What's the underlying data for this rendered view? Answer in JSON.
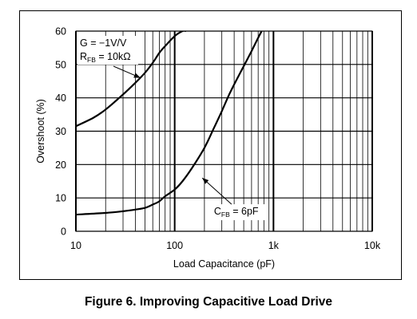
{
  "figure": {
    "caption": "Figure 6. Improving Capacitive Load Drive"
  },
  "chart_data": {
    "type": "line",
    "xlabel": "Load Capacitance (pF)",
    "ylabel": "Overshoot (%)",
    "xscale": "log",
    "xlim": [
      10,
      10000
    ],
    "ylim": [
      0,
      60
    ],
    "xticks": [
      10,
      100,
      1000,
      10000
    ],
    "xtick_labels": [
      "10",
      "100",
      "1k",
      "10k"
    ],
    "yticks": [
      0,
      10,
      20,
      30,
      40,
      50,
      60
    ],
    "ytick_labels": [
      "0",
      "10",
      "20",
      "30",
      "40",
      "50",
      "60"
    ],
    "grid": true,
    "series": [
      {
        "x": [
          10,
          15,
          20,
          30,
          40,
          50,
          60,
          70,
          80,
          100,
          120,
          130
        ],
        "y": [
          31.5,
          34,
          36.5,
          41,
          44.5,
          47.5,
          50.5,
          53.5,
          55.5,
          58.5,
          60,
          60
        ]
      },
      {
        "x": [
          10,
          20,
          30,
          40,
          50,
          60,
          70,
          80,
          100,
          120,
          150,
          200,
          250,
          300,
          350,
          400,
          500,
          600,
          700,
          760
        ],
        "y": [
          5,
          5.5,
          6,
          6.5,
          7,
          8,
          9,
          10.5,
          12.5,
          15,
          19,
          25,
          31,
          36,
          40.5,
          44,
          49.5,
          54,
          58,
          60
        ]
      }
    ],
    "annotations": [
      {
        "lines": [
          "G = −1V/V",
          "R",
          "FB",
          " = 10kΩ"
        ],
        "arrow_to_x": 45,
        "arrow_to_y": 46
      },
      {
        "lines": [
          "C",
          "FB",
          " = 6pF"
        ],
        "arrow_to_x": 190,
        "arrow_to_y": 16
      }
    ]
  }
}
